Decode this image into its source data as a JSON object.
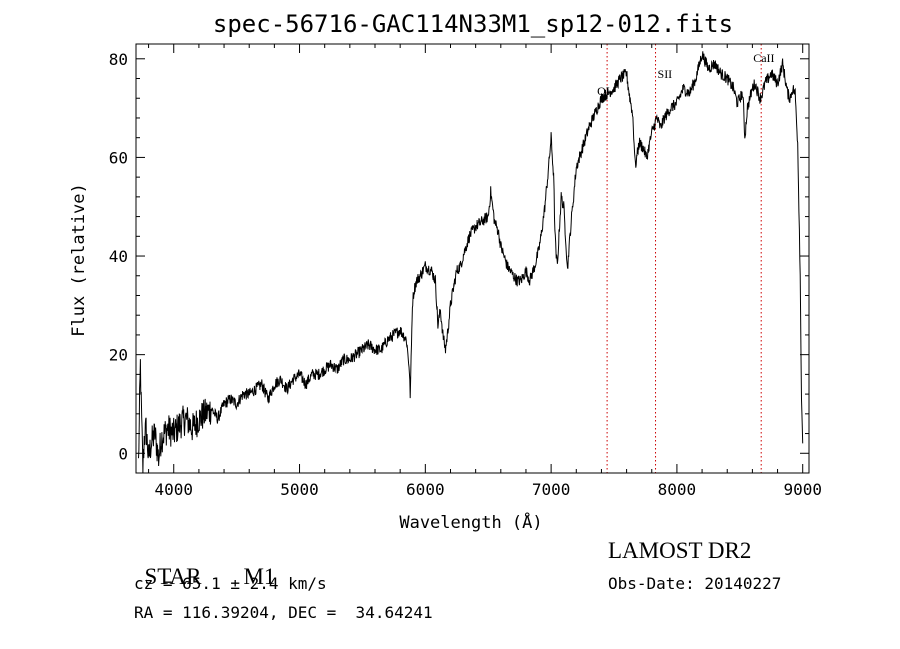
{
  "chart_data": {
    "type": "line",
    "title": "spec-56716-GAC114N33M1_sp12-012.fits",
    "xlabel": "Wavelength (Å)",
    "ylabel": "Flux (relative)",
    "xlim": [
      3700,
      9050
    ],
    "ylim": [
      -4,
      83
    ],
    "xticks": [
      4000,
      5000,
      6000,
      7000,
      8000,
      9000
    ],
    "yticks": [
      0,
      20,
      40,
      60,
      80
    ],
    "grid": false,
    "series": [
      {
        "color": "#000000",
        "x": [
          3720,
          3735,
          3745,
          3755,
          3765,
          3780,
          3800,
          3820,
          3850,
          3880,
          3900,
          3950,
          4000,
          4050,
          4100,
          4150,
          4200,
          4250,
          4300,
          4350,
          4400,
          4450,
          4500,
          4550,
          4600,
          4650,
          4700,
          4750,
          4800,
          4850,
          4900,
          4950,
          5000,
          5050,
          5100,
          5150,
          5200,
          5250,
          5300,
          5350,
          5400,
          5450,
          5500,
          5550,
          5600,
          5650,
          5700,
          5750,
          5800,
          5850,
          5870,
          5880,
          5890,
          5895,
          5900,
          5910,
          5930,
          5960,
          6000,
          6050,
          6080,
          6100,
          6120,
          6140,
          6160,
          6180,
          6200,
          6220,
          6250,
          6280,
          6300,
          6350,
          6400,
          6450,
          6500,
          6520,
          6550,
          6580,
          6600,
          6650,
          6700,
          6730,
          6760,
          6800,
          6830,
          6870,
          6900,
          6920,
          6950,
          6980,
          7000,
          7020,
          7030,
          7040,
          7050,
          7060,
          7080,
          7100,
          7120,
          7130,
          7140,
          7160,
          7200,
          7250,
          7300,
          7350,
          7400,
          7450,
          7500,
          7550,
          7600,
          7620,
          7640,
          7650,
          7660,
          7670,
          7680,
          7700,
          7730,
          7760,
          7800,
          7840,
          7870,
          7900,
          7950,
          8000,
          8050,
          8100,
          8150,
          8200,
          8250,
          8300,
          8350,
          8400,
          8450,
          8480,
          8500,
          8520,
          8530,
          8540,
          8560,
          8600,
          8620,
          8660,
          8680,
          8700,
          8750,
          8800,
          8840,
          8860,
          8880,
          8900,
          8920,
          8940,
          8960,
          8970,
          8980,
          8990,
          9000
        ],
        "y": [
          -2,
          18,
          6,
          -3,
          3,
          5,
          -1,
          2,
          4,
          -1,
          3,
          5,
          4,
          6,
          7,
          5,
          7,
          8,
          9,
          7,
          10,
          11,
          10,
          12,
          12,
          13,
          14,
          11,
          14,
          15,
          13,
          15,
          16,
          14,
          16,
          16,
          17,
          18,
          17,
          19,
          19,
          20,
          21,
          22,
          21,
          21,
          23,
          24,
          25,
          23,
          18,
          12,
          22,
          28,
          31,
          33,
          35,
          36,
          38,
          37,
          35,
          26,
          29,
          24,
          21,
          25,
          30,
          33,
          37,
          38,
          40,
          44,
          46,
          47,
          48,
          53,
          47,
          45,
          42,
          38,
          36,
          35,
          35,
          37,
          35,
          38,
          41,
          44,
          50,
          58,
          64,
          56,
          45,
          40,
          38,
          43,
          52,
          50,
          42,
          37,
          41,
          47,
          58,
          62,
          66,
          69,
          72,
          73,
          74,
          76,
          77,
          73,
          70,
          68,
          63,
          58,
          60,
          63,
          62,
          60,
          65,
          68,
          66,
          68,
          70,
          71,
          74,
          73,
          76,
          81,
          78,
          79,
          77,
          76,
          74,
          71,
          72,
          73,
          70,
          64,
          70,
          74,
          75,
          72,
          73,
          75,
          77,
          75,
          79,
          76,
          73,
          72,
          74,
          73,
          63,
          50,
          36,
          12,
          2
        ]
      }
    ],
    "annotations": [
      {
        "label": "OI",
        "x": 7445
      },
      {
        "label": "SII",
        "x": 7830
      },
      {
        "label": "CaII",
        "x": 8670
      }
    ]
  },
  "info": {
    "object_type": "STAR",
    "subclass": "M1",
    "survey": "LAMOST DR2",
    "redshift": "cz = 65.1 ± 2.4 km/s",
    "obs_date": "Obs-Date: 20140227",
    "coords": "RA = 116.39204, DEC =  34.64241"
  }
}
